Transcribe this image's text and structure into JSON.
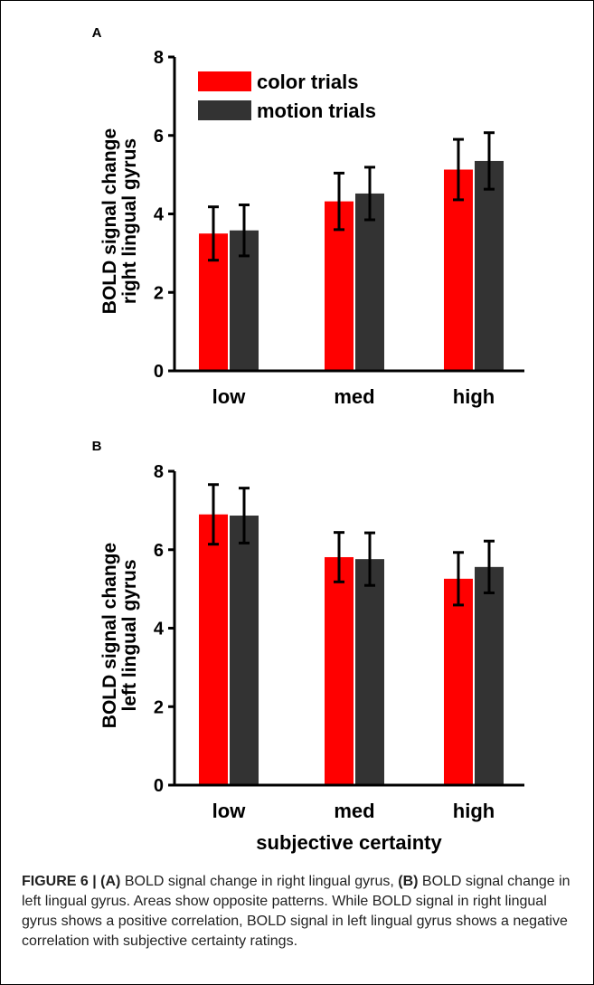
{
  "caption": {
    "figure_label": "FIGURE 6 |",
    "a_label": "(A)",
    "a_text": " BOLD signal change in right lingual gyrus, ",
    "b_label": "(B)",
    "b_text": " BOLD signal change in left lingual gyrus. Areas show opposite patterns. While BOLD signal in right lingual gyrus shows a positive correlation, BOLD signal in left lingual gyrus shows a negative correlation with subjective certainty ratings."
  },
  "colors": {
    "color_trials": "#ff0000",
    "motion_trials": "#333333"
  },
  "chart_data": [
    {
      "type": "bar",
      "panel": "A",
      "categories": [
        "low",
        "med",
        "high"
      ],
      "series": [
        {
          "name": "color trials",
          "values": [
            3.5,
            4.32,
            5.13
          ],
          "errors": [
            0.68,
            0.72,
            0.77
          ]
        },
        {
          "name": "motion trials",
          "values": [
            3.58,
            4.52,
            5.35
          ],
          "errors": [
            0.65,
            0.67,
            0.72
          ]
        }
      ],
      "ylabel": [
        "BOLD signal change",
        "right lingual gyrus"
      ],
      "xlabel": "",
      "ylim": [
        0,
        8
      ],
      "yticks": [
        0,
        2,
        4,
        6,
        8
      ],
      "legend": {
        "placement": "top-left",
        "entries": [
          "color trials",
          "motion trials"
        ]
      },
      "grid": false
    },
    {
      "type": "bar",
      "panel": "B",
      "categories": [
        "low",
        "med",
        "high"
      ],
      "series": [
        {
          "name": "color trials",
          "values": [
            6.9,
            5.81,
            5.26
          ],
          "errors": [
            0.76,
            0.63,
            0.67
          ]
        },
        {
          "name": "motion trials",
          "values": [
            6.87,
            5.76,
            5.56
          ],
          "errors": [
            0.7,
            0.67,
            0.66
          ]
        }
      ],
      "ylabel": [
        "BOLD signal change",
        "left lingual gyrus"
      ],
      "xlabel": "subjective certainty",
      "ylim": [
        0,
        8
      ],
      "yticks": [
        0,
        2,
        4,
        6,
        8
      ],
      "grid": false
    }
  ]
}
